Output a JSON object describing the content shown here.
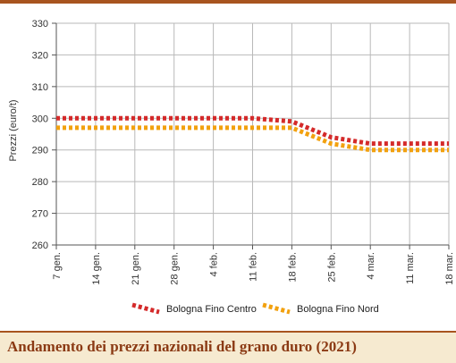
{
  "chart_data": {
    "type": "line",
    "ylabel": "Prezzi (euro/t)",
    "ylim": [
      260,
      330
    ],
    "yticks": [
      260,
      270,
      280,
      290,
      300,
      310,
      320,
      330
    ],
    "categories": [
      "7 gen.",
      "14 gen.",
      "21 gen.",
      "28 gen.",
      "4 feb.",
      "11 feb.",
      "18 feb.",
      "25 feb.",
      "4 mar.",
      "11 mar.",
      "18 mar."
    ],
    "grid": true,
    "legend_position": "bottom",
    "series": [
      {
        "name": "Bologna Fino Centro",
        "color": "#d42a2a",
        "values": [
          300,
          300,
          300,
          300,
          300,
          300,
          299,
          294,
          292,
          292,
          292
        ]
      },
      {
        "name": "Bologna Fino Nord",
        "color": "#f2a10f",
        "values": [
          297,
          297,
          297,
          297,
          297,
          297,
          297,
          292,
          290,
          290,
          290
        ]
      }
    ]
  },
  "caption": {
    "title": "Andamento dei prezzi nazionali del grano duro (2021)"
  },
  "colors": {
    "accent": "#a8541f",
    "caption_bg": "#f6ead0",
    "caption_text": "#8b3a14"
  }
}
